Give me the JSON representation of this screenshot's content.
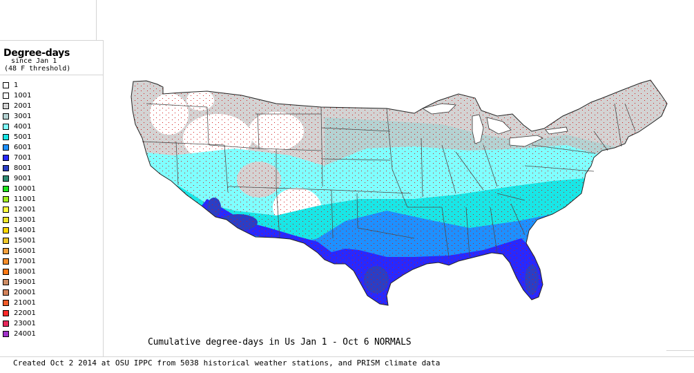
{
  "legend": {
    "title": "Degree-days",
    "subtitle_1": "since Jan 1",
    "subtitle_2": "(48 F threshold)",
    "items": [
      {
        "label": "1",
        "color": "#ffffff"
      },
      {
        "label": "1001",
        "color": "#ffffff"
      },
      {
        "label": "2001",
        "color": "#d3d3d3"
      },
      {
        "label": "3001",
        "color": "#b4d2d2"
      },
      {
        "label": "4001",
        "color": "#7fffff"
      },
      {
        "label": "5001",
        "color": "#19e6e6"
      },
      {
        "label": "6001",
        "color": "#1e90ff"
      },
      {
        "label": "7001",
        "color": "#2828ff"
      },
      {
        "label": "8001",
        "color": "#2b3ec4"
      },
      {
        "label": "9001",
        "color": "#2e8b72"
      },
      {
        "label": "10001",
        "color": "#1ee61e"
      },
      {
        "label": "11001",
        "color": "#a0f020"
      },
      {
        "label": "12001",
        "color": "#ffff3c"
      },
      {
        "label": "13001",
        "color": "#f0e628"
      },
      {
        "label": "14001",
        "color": "#ffd700"
      },
      {
        "label": "15001",
        "color": "#f0c828"
      },
      {
        "label": "16001",
        "color": "#f5a03c"
      },
      {
        "label": "17001",
        "color": "#f58c28"
      },
      {
        "label": "18001",
        "color": "#ff7814"
      },
      {
        "label": "19001",
        "color": "#cd8c64"
      },
      {
        "label": "20001",
        "color": "#d2825a"
      },
      {
        "label": "21001",
        "color": "#f05a28"
      },
      {
        "label": "22001",
        "color": "#ff2828"
      },
      {
        "label": "23001",
        "color": "#e6285a"
      },
      {
        "label": "24001",
        "color": "#a032c8"
      }
    ]
  },
  "map": {
    "title": "Cumulative degree-days in Us  Jan 1 - Oct 6 NORMALS",
    "credit": "Created Oct 2 2014 at OSU IPPC from 5038 historical weather stations, and PRISM climate data"
  }
}
